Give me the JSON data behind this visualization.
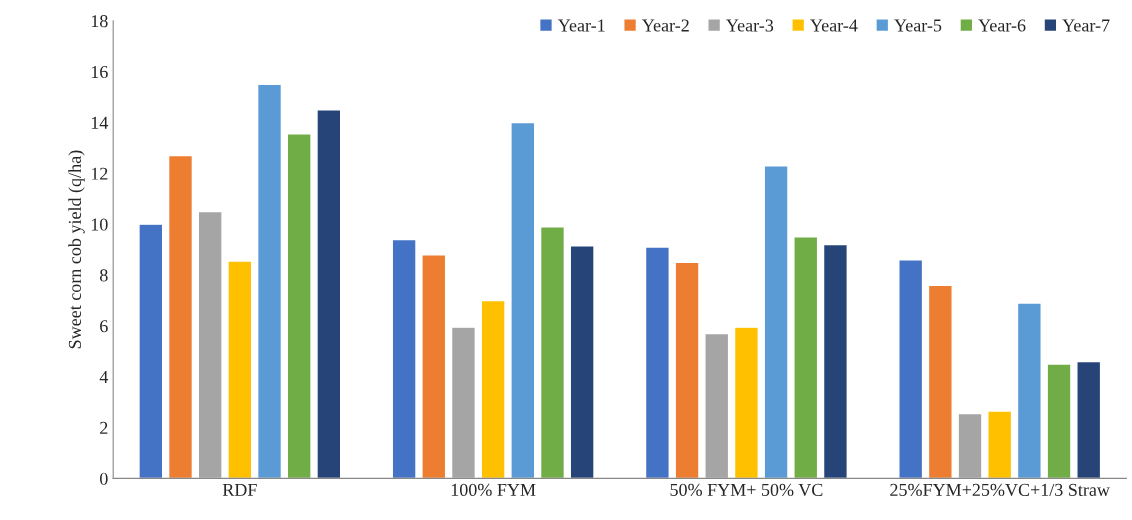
{
  "chart_data": {
    "type": "bar",
    "ylabel": "Sweet corn cob yield (q/ha)",
    "categories": [
      "RDF",
      "100% FYM",
      "50% FYM+ 50% VC",
      "25%FYM+25%VC+1/3 Straw"
    ],
    "series": [
      {
        "name": "Year-1",
        "color": "#4472c4",
        "values": [
          10.0,
          9.4,
          9.1,
          8.6
        ]
      },
      {
        "name": "Year-2",
        "color": "#ed7d31",
        "values": [
          12.7,
          8.8,
          8.5,
          7.6
        ]
      },
      {
        "name": "Year-3",
        "color": "#a5a5a5",
        "values": [
          10.5,
          5.95,
          5.7,
          2.55
        ]
      },
      {
        "name": "Year-4",
        "color": "#ffc000",
        "values": [
          8.55,
          7.0,
          5.95,
          2.65
        ]
      },
      {
        "name": "Year-5",
        "color": "#5b9bd5",
        "values": [
          15.5,
          14.0,
          12.3,
          6.9
        ]
      },
      {
        "name": "Year-6",
        "color": "#70ad47",
        "values": [
          13.55,
          9.9,
          9.5,
          4.5
        ]
      },
      {
        "name": "Year-7",
        "color": "#264478",
        "values": [
          14.5,
          9.15,
          9.2,
          4.6
        ]
      }
    ],
    "ylim": [
      0,
      18
    ],
    "yticks": [
      0,
      2,
      4,
      6,
      8,
      10,
      12,
      14,
      16,
      18
    ],
    "grid": false,
    "legend": "top right"
  }
}
